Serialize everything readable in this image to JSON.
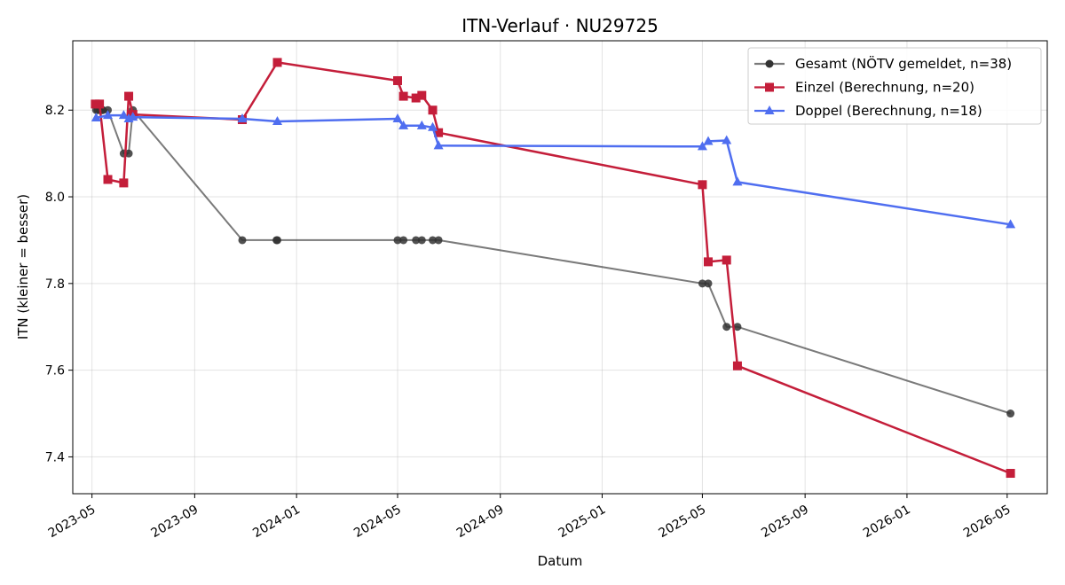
{
  "chart_data": {
    "type": "line",
    "title": "ITN-Verlauf · NU29725",
    "xlabel": "Datum",
    "ylabel": "ITN  (kleiner = besser)",
    "xlim": [
      "2023-04-08",
      "2026-06-18"
    ],
    "ylim": [
      7.315,
      8.36
    ],
    "grid": true,
    "legend_position": "top-right",
    "x_ticks": [
      "2023-05",
      "2023-09",
      "2024-01",
      "2024-05",
      "2024-09",
      "2025-01",
      "2025-05",
      "2025-09",
      "2026-01",
      "2026-05"
    ],
    "y_ticks": [
      7.4,
      7.6,
      7.8,
      8.0,
      8.2
    ],
    "series": [
      {
        "name": "Gesamt (NÖTV gemeldet, n=38)",
        "color": "#333333",
        "marker": "circle",
        "points": [
          [
            "2023-05-06",
            8.2
          ],
          [
            "2023-05-08",
            8.2
          ],
          [
            "2023-05-10",
            8.2
          ],
          [
            "2023-05-13",
            8.2
          ],
          [
            "2023-05-14",
            8.2
          ],
          [
            "2023-05-20",
            8.2
          ],
          [
            "2023-06-08",
            8.1
          ],
          [
            "2023-06-14",
            8.1
          ],
          [
            "2023-06-19",
            8.2
          ],
          [
            "2023-10-28",
            7.9
          ],
          [
            "2023-12-08",
            7.9
          ],
          [
            "2023-12-09",
            7.9
          ],
          [
            "2024-05-01",
            7.9
          ],
          [
            "2024-05-08",
            7.9
          ],
          [
            "2024-05-23",
            7.9
          ],
          [
            "2024-05-30",
            7.9
          ],
          [
            "2024-06-12",
            7.9
          ],
          [
            "2024-06-19",
            7.9
          ],
          [
            "2025-05-01",
            7.8
          ],
          [
            "2025-05-08",
            7.8
          ],
          [
            "2025-05-30",
            7.7
          ],
          [
            "2025-06-12",
            7.7
          ],
          [
            "2026-05-05",
            7.5
          ]
        ]
      },
      {
        "name": "Einzel (Berechnung, n=20)",
        "color": "#c41e3a",
        "marker": "square",
        "points": [
          [
            "2023-05-05",
            8.214
          ],
          [
            "2023-05-10",
            8.214
          ],
          [
            "2023-05-20",
            8.04
          ],
          [
            "2023-06-08",
            8.032
          ],
          [
            "2023-06-14",
            8.232
          ],
          [
            "2023-06-19",
            8.19
          ],
          [
            "2023-10-28",
            8.178
          ],
          [
            "2023-12-09",
            8.31
          ],
          [
            "2024-05-01",
            8.268
          ],
          [
            "2024-05-08",
            8.232
          ],
          [
            "2024-05-23",
            8.228
          ],
          [
            "2024-05-30",
            8.234
          ],
          [
            "2024-06-12",
            8.2
          ],
          [
            "2024-06-19",
            8.148
          ],
          [
            "2025-05-01",
            8.028
          ],
          [
            "2025-05-08",
            7.85
          ],
          [
            "2025-05-30",
            7.854
          ],
          [
            "2025-06-12",
            7.61
          ],
          [
            "2026-05-05",
            7.362
          ]
        ]
      },
      {
        "name": "Doppel (Berechnung, n=18)",
        "color": "#4f6ef0",
        "marker": "triangle",
        "points": [
          [
            "2023-05-06",
            8.182
          ],
          [
            "2023-05-20",
            8.188
          ],
          [
            "2023-06-08",
            8.188
          ],
          [
            "2023-06-14",
            8.18
          ],
          [
            "2023-06-19",
            8.184
          ],
          [
            "2023-10-28",
            8.18
          ],
          [
            "2023-12-09",
            8.174
          ],
          [
            "2024-05-01",
            8.18
          ],
          [
            "2024-05-08",
            8.164
          ],
          [
            "2024-05-30",
            8.164
          ],
          [
            "2024-06-12",
            8.16
          ],
          [
            "2024-06-19",
            8.118
          ],
          [
            "2025-05-01",
            8.116
          ],
          [
            "2025-05-08",
            8.128
          ],
          [
            "2025-05-30",
            8.13
          ],
          [
            "2025-06-12",
            8.034
          ],
          [
            "2026-05-05",
            7.936
          ]
        ]
      }
    ]
  }
}
